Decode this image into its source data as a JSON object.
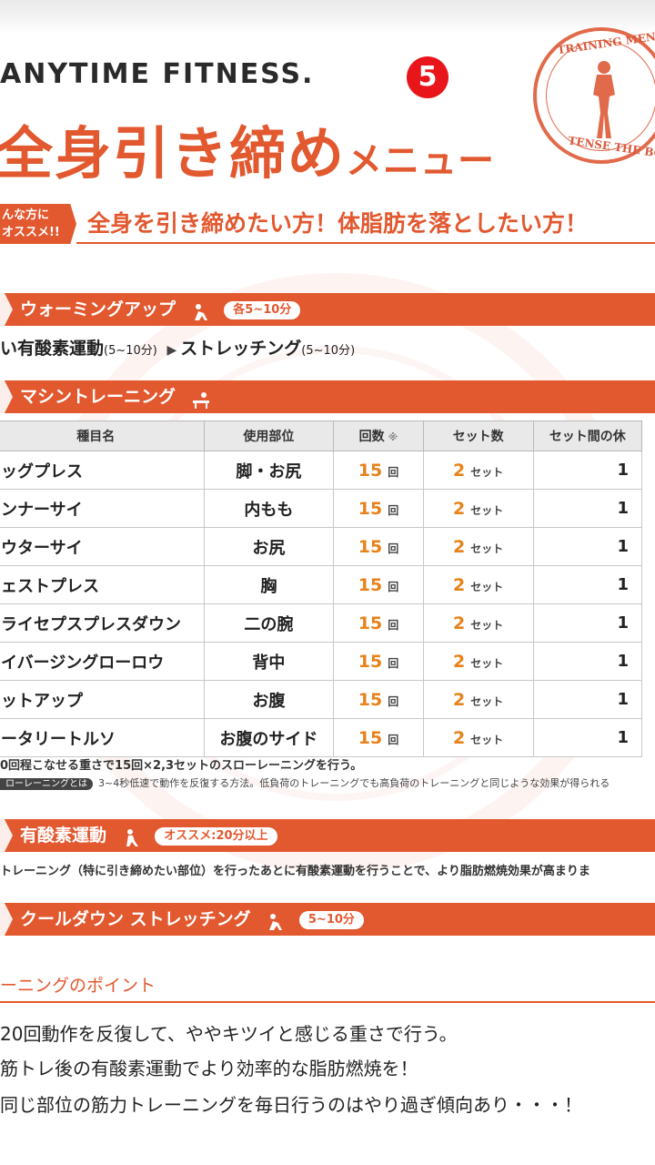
{
  "header": {
    "brand": "ANYTIME FITNESS.",
    "number_badge": "5",
    "stamp_top": "TRAINING MENU",
    "stamp_bottom": "TENSE THE BODY",
    "title_main": "全身引き締め",
    "title_sub": "メニュー",
    "recommend_tag": "んな方に\nオススメ!!",
    "recommend_text": "全身を引き締めたい方！体脂肪を落としたい方！"
  },
  "warmup": {
    "title": "ウォーミングアップ",
    "icon": "stretching-person-icon",
    "pill": "各5~10分",
    "item1": "い有酸素運動",
    "item1_time": "(5~10分)",
    "item2": "ストレッチング",
    "item2_time": "(5~10分)"
  },
  "machine": {
    "title": "マシントレーニング",
    "icon": "bench-press-icon",
    "headers": [
      "種目名",
      "使用部位",
      "回数",
      "セット数",
      "セット間の休"
    ],
    "rep_note": "※",
    "rep_unit": "回",
    "set_unit": "セット",
    "rows": [
      {
        "name": "ッグプレス",
        "part": "脚・お尻",
        "reps": "15",
        "sets": "2",
        "rest": "1"
      },
      {
        "name": "ンナーサイ",
        "part": "内もも",
        "reps": "15",
        "sets": "2",
        "rest": "1"
      },
      {
        "name": "ウターサイ",
        "part": "お尻",
        "reps": "15",
        "sets": "2",
        "rest": "1"
      },
      {
        "name": "ェストプレス",
        "part": "胸",
        "reps": "15",
        "sets": "2",
        "rest": "1"
      },
      {
        "name": "ライセプスプレスダウン",
        "part": "二の腕",
        "reps": "15",
        "sets": "2",
        "rest": "1"
      },
      {
        "name": "イバージングローロウ",
        "part": "背中",
        "reps": "15",
        "sets": "2",
        "rest": "1"
      },
      {
        "name": "ットアップ",
        "part": "お腹",
        "reps": "15",
        "sets": "2",
        "rest": "1"
      },
      {
        "name": "ータリートルソ",
        "part": "お腹のサイド",
        "reps": "15",
        "sets": "2",
        "rest": "1"
      }
    ],
    "note1": "0回程こなせる重さで15回×2,3セットのスローレーニングを行う。",
    "note2_tag": "ローレーニングとは",
    "note2": "3~4秒低速で動作を反復する方法。低負荷のトレーニングでも高負荷のトレーニングと同じような効果が得られる"
  },
  "cardio": {
    "title": "有酸素運動",
    "icon": "treadmill-person-icon",
    "pill": "オススメ:20分以上",
    "text": "トレーニング（特に引き締めたい部位）を行ったあとに有酸素運動を行うことで、より脂肪燃焼効果が高まりま"
  },
  "cooldown": {
    "title": "クールダウン ストレッチング",
    "icon": "stretching-person-icon",
    "pill": "5~10分"
  },
  "points": {
    "title": "ーニングのポイント",
    "items": [
      "20回動作を反復して、ややキツイと感じる重さで行う。",
      "筋トレ後の有酸素運動でより効率的な脂肪燃焼を！",
      "同じ部位の筋力トレーニングを毎日行うのはやり過ぎ傾向あり・・・！"
    ]
  },
  "colors": {
    "accent": "#e2582f",
    "number": "#e8821a",
    "badge": "#e8151b"
  }
}
